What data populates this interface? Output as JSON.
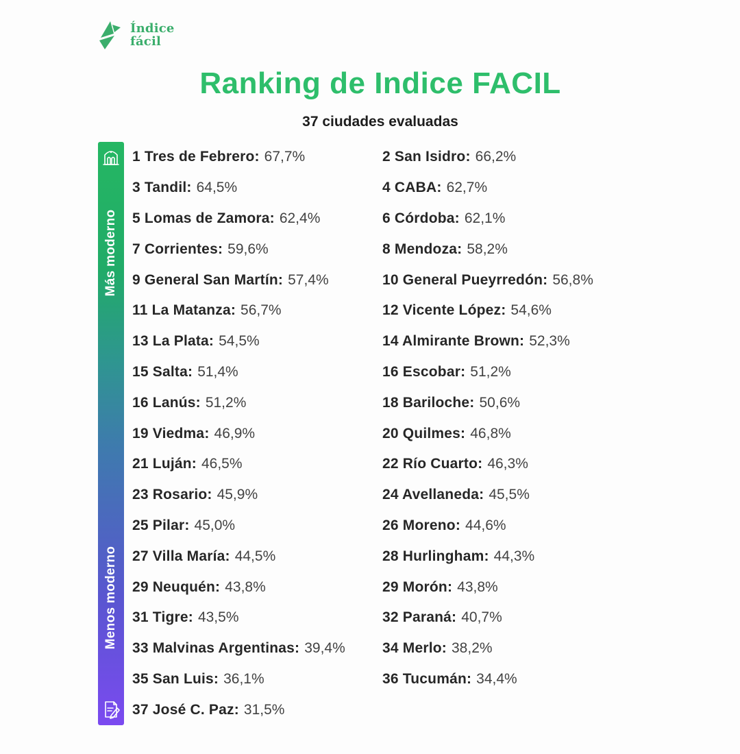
{
  "logo": {
    "line1": "Índice",
    "line2": "fácil",
    "icon": "origami-bird-icon",
    "color": "#3bae6c"
  },
  "header": {
    "title": "Ranking de Indice FACIL",
    "subtitle": "37 ciudades evaluadas",
    "title_color": "#2ebe6b"
  },
  "scale": {
    "top_label": "Más moderno",
    "bottom_label": "Menos moderno",
    "top_icon": "modern-building-icon",
    "bottom_icon": "document-pencil-icon",
    "gradient_top_color": "#25b763",
    "gradient_mid_color": "#3e7bad",
    "gradient_bottom_color": "#7b4af0"
  },
  "list": {
    "left": [
      {
        "rank": "1",
        "name": "Tres de Febrero",
        "value": "67,7%"
      },
      {
        "rank": "3",
        "name": "Tandil",
        "value": "64,5%"
      },
      {
        "rank": "5",
        "name": "Lomas de Zamora",
        "value": "62,4%"
      },
      {
        "rank": "7",
        "name": "Corrientes",
        "value": "59,6%"
      },
      {
        "rank": "9",
        "name": "General San Martín",
        "value": "57,4%"
      },
      {
        "rank": "11",
        "name": "La Matanza",
        "value": "56,7%"
      },
      {
        "rank": "13",
        "name": "La Plata",
        "value": "54,5%"
      },
      {
        "rank": "15",
        "name": "Salta",
        "value": "51,4%"
      },
      {
        "rank": "16",
        "name": "Lanús",
        "value": "51,2%"
      },
      {
        "rank": "19",
        "name": "Viedma",
        "value": "46,9%"
      },
      {
        "rank": "21",
        "name": "Luján",
        "value": "46,5%"
      },
      {
        "rank": "23",
        "name": "Rosario",
        "value": "45,9%"
      },
      {
        "rank": "25",
        "name": "Pilar",
        "value": "45,0%"
      },
      {
        "rank": "27",
        "name": "Villa María",
        "value": "44,5%"
      },
      {
        "rank": "29",
        "name": "Neuquén",
        "value": "43,8%"
      },
      {
        "rank": "31",
        "name": "Tigre",
        "value": "43,5%"
      },
      {
        "rank": "33",
        "name": "Malvinas Argentinas",
        "value": "39,4%"
      },
      {
        "rank": "35",
        "name": "San Luis",
        "value": "36,1%"
      },
      {
        "rank": "37",
        "name": "José C. Paz",
        "value": "31,5%"
      }
    ],
    "right": [
      {
        "rank": "2",
        "name": "San Isidro",
        "value": "66,2%"
      },
      {
        "rank": "4",
        "name": "CABA",
        "value": "62,7%"
      },
      {
        "rank": "6",
        "name": "Córdoba",
        "value": "62,1%"
      },
      {
        "rank": "8",
        "name": "Mendoza",
        "value": "58,2%"
      },
      {
        "rank": "10",
        "name": "General Pueyrredón",
        "value": "56,8%"
      },
      {
        "rank": "12",
        "name": "Vicente López",
        "value": "54,6%"
      },
      {
        "rank": "14",
        "name": "Almirante Brown",
        "value": "52,3%"
      },
      {
        "rank": "16",
        "name": "Escobar",
        "value": "51,2%"
      },
      {
        "rank": "18",
        "name": "Bariloche",
        "value": "50,6%"
      },
      {
        "rank": "20",
        "name": "Quilmes",
        "value": "46,8%"
      },
      {
        "rank": "22",
        "name": "Río Cuarto",
        "value": "46,3%"
      },
      {
        "rank": "24",
        "name": "Avellaneda",
        "value": "45,5%"
      },
      {
        "rank": "26",
        "name": "Moreno",
        "value": "44,6%"
      },
      {
        "rank": "28",
        "name": "Hurlingham",
        "value": "44,3%"
      },
      {
        "rank": "29",
        "name": "Morón",
        "value": "43,8%"
      },
      {
        "rank": "32",
        "name": "Paraná",
        "value": "40,7%"
      },
      {
        "rank": "34",
        "name": "Merlo",
        "value": "38,2%"
      },
      {
        "rank": "36",
        "name": "Tucumán",
        "value": "34,4%"
      }
    ]
  },
  "chart_data": {
    "type": "table",
    "title": "Ranking de Indice FACIL",
    "subtitle": "37 ciudades evaluadas",
    "scale_top_label": "Más moderno",
    "scale_bottom_label": "Menos moderno",
    "columns": [
      "rank",
      "city",
      "score_pct"
    ],
    "rows": [
      [
        1,
        "Tres de Febrero",
        67.7
      ],
      [
        2,
        "San Isidro",
        66.2
      ],
      [
        3,
        "Tandil",
        64.5
      ],
      [
        4,
        "CABA",
        62.7
      ],
      [
        5,
        "Lomas de Zamora",
        62.4
      ],
      [
        6,
        "Córdoba",
        62.1
      ],
      [
        7,
        "Corrientes",
        59.6
      ],
      [
        8,
        "Mendoza",
        58.2
      ],
      [
        9,
        "General San Martín",
        57.4
      ],
      [
        10,
        "General Pueyrredón",
        56.8
      ],
      [
        11,
        "La Matanza",
        56.7
      ],
      [
        12,
        "Vicente López",
        54.6
      ],
      [
        13,
        "La Plata",
        54.5
      ],
      [
        14,
        "Almirante Brown",
        52.3
      ],
      [
        15,
        "Salta",
        51.4
      ],
      [
        16,
        "Escobar",
        51.2
      ],
      [
        16,
        "Lanús",
        51.2
      ],
      [
        18,
        "Bariloche",
        50.6
      ],
      [
        19,
        "Viedma",
        46.9
      ],
      [
        20,
        "Quilmes",
        46.8
      ],
      [
        21,
        "Luján",
        46.5
      ],
      [
        22,
        "Río Cuarto",
        46.3
      ],
      [
        23,
        "Rosario",
        45.9
      ],
      [
        24,
        "Avellaneda",
        45.5
      ],
      [
        25,
        "Pilar",
        45.0
      ],
      [
        26,
        "Moreno",
        44.6
      ],
      [
        27,
        "Villa María",
        44.5
      ],
      [
        28,
        "Hurlingham",
        44.3
      ],
      [
        29,
        "Neuquén",
        43.8
      ],
      [
        29,
        "Morón",
        43.8
      ],
      [
        31,
        "Tigre",
        43.5
      ],
      [
        32,
        "Paraná",
        40.7
      ],
      [
        33,
        "Malvinas Argentinas",
        39.4
      ],
      [
        34,
        "Merlo",
        38.2
      ],
      [
        35,
        "San Luis",
        36.1
      ],
      [
        36,
        "Tucumán",
        34.4
      ],
      [
        37,
        "José C. Paz",
        31.5
      ]
    ]
  }
}
